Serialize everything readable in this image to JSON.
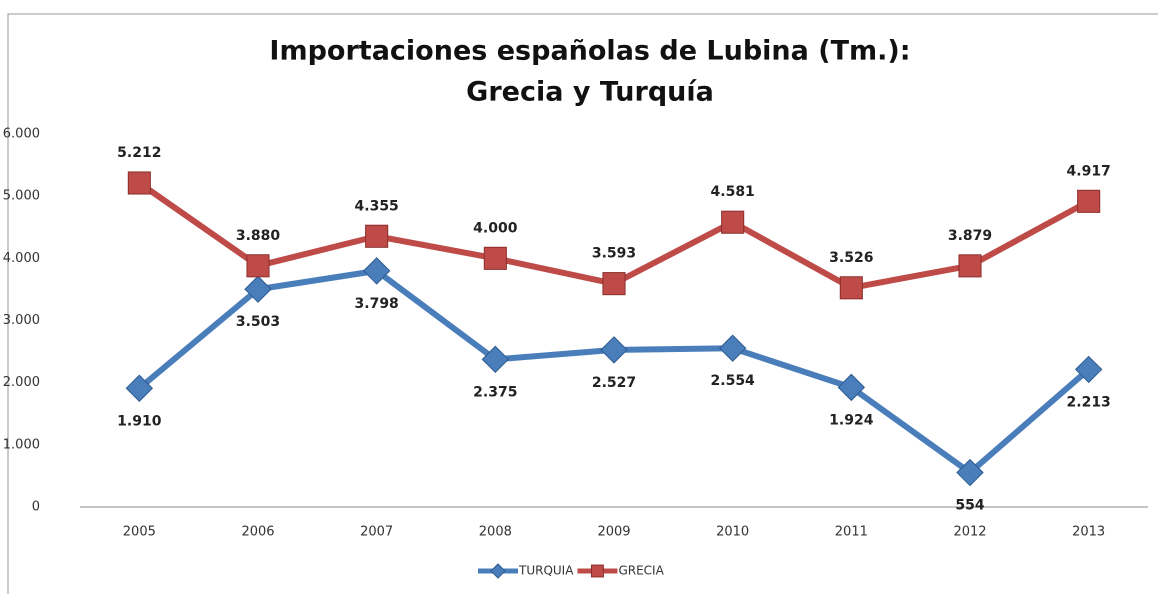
{
  "chart_data": {
    "type": "line",
    "title": "Importaciones españolas de Lubina (Tm.):",
    "subtitle": "Grecia y Turquía",
    "categories": [
      "2005",
      "2006",
      "2007",
      "2008",
      "2009",
      "2010",
      "2011",
      "2012",
      "2013"
    ],
    "series": [
      {
        "name": "TURQUIA",
        "color": "#4a7ebb",
        "marker": "diamond",
        "values": [
          1910,
          3503,
          3798,
          2375,
          2527,
          2554,
          1924,
          554,
          2213
        ],
        "value_labels": [
          "1.910",
          "3.503",
          "3.798",
          "2.375",
          "2.527",
          "2.554",
          "1.924",
          "554",
          "2.213"
        ]
      },
      {
        "name": "GRECIA",
        "color": "#be4b48",
        "marker": "square",
        "values": [
          5212,
          3880,
          4355,
          4000,
          3593,
          4581,
          3526,
          3879,
          4917
        ],
        "value_labels": [
          "5.212",
          "3.880",
          "4.355",
          "4.000",
          "3.593",
          "4.581",
          "3.526",
          "3.879",
          "4.917"
        ]
      }
    ],
    "ylim": [
      0,
      6000
    ],
    "yticks": [
      0,
      {
        "value": 1000,
        "label": "1.000"
      },
      {
        "value": 2000,
        "label": "2.000"
      },
      {
        "value": 3000,
        "label": "3.000"
      },
      {
        "value": 4000,
        "label": "4.000"
      },
      {
        "value": 5000,
        "label": "5.000"
      },
      {
        "value": 6000,
        "label": "6.000"
      }
    ],
    "grid": false,
    "legend": "bottom"
  }
}
